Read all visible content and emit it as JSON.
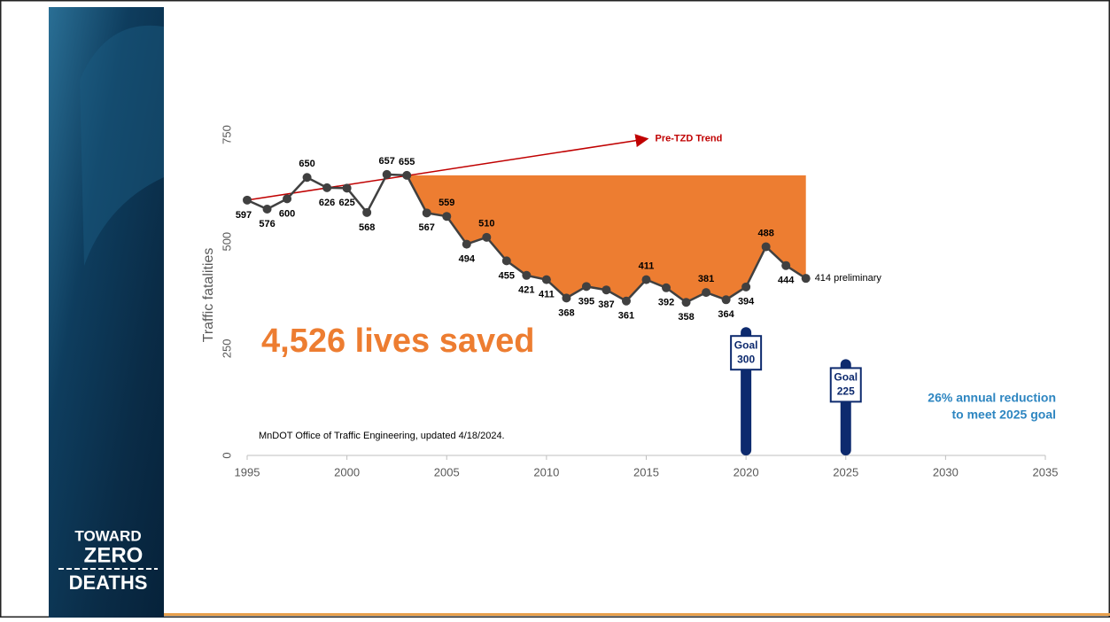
{
  "chart_data": {
    "type": "line",
    "y_label": "Traffic fatalities",
    "x": [
      1995,
      1996,
      1997,
      1998,
      1999,
      2000,
      2001,
      2002,
      2003,
      2004,
      2005,
      2006,
      2007,
      2008,
      2009,
      2010,
      2011,
      2012,
      2013,
      2014,
      2015,
      2016,
      2017,
      2018,
      2019,
      2020,
      2021,
      2022,
      2023
    ],
    "series": [
      {
        "name": "Traffic fatalities",
        "color": "#404040",
        "values": [
          597,
          576,
          600,
          650,
          626,
          625,
          568,
          657,
          655,
          567,
          559,
          494,
          510,
          455,
          421,
          411,
          368,
          395,
          387,
          361,
          411,
          392,
          358,
          381,
          364,
          394,
          488,
          444,
          414
        ],
        "value_labels": [
          "597",
          "576",
          "600",
          "650",
          "626",
          "625",
          "568",
          "657",
          "655",
          "567",
          "559",
          "494",
          "510",
          "455",
          "421",
          "411",
          "368",
          "395",
          "387",
          "361",
          "411",
          "392",
          "358",
          "381",
          "364",
          "394",
          "488",
          "444",
          "414 preliminary"
        ]
      }
    ],
    "xlim": [
      1995,
      2035
    ],
    "xticks": [
      1995,
      2000,
      2005,
      2010,
      2015,
      2020,
      2025,
      2030,
      2035
    ],
    "ylim": [
      0,
      750
    ],
    "yticks": [
      0,
      250,
      500,
      750
    ],
    "shaded_area": {
      "x": [
        2003,
        2023
      ],
      "y": 655,
      "color": "#ed7d31"
    },
    "trend": {
      "label": "Pre-TZD Trend",
      "x": [
        1995,
        2015
      ],
      "y": [
        597,
        740
      ],
      "color": "#c00000"
    },
    "goals": [
      {
        "x": 2020,
        "label": "Goal",
        "value": 300,
        "color": "#0d2a6e"
      },
      {
        "x": 2025,
        "label": "Goal",
        "value": 225,
        "color": "#0d2a6e"
      }
    ],
    "annotations": {
      "lives_saved": "4,526 lives saved",
      "reduction_line1": "26% annual reduction",
      "reduction_line2": "to meet 2025 goal",
      "source": "MnDOT Office of Traffic Engineering, updated 4/18/2024."
    }
  },
  "logo": {
    "line1": "TOWARD",
    "line2": "ZERO",
    "line3": "DEATHS"
  }
}
